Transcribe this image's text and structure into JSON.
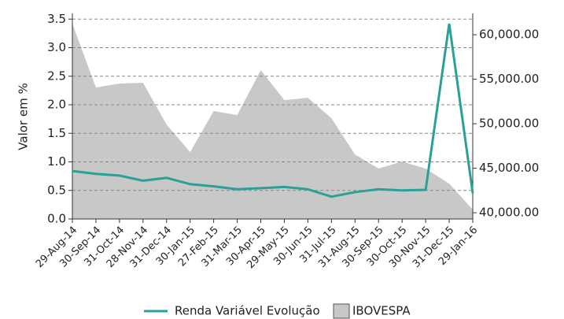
{
  "chart_data": {
    "type": "line",
    "y_label": "Valor em %",
    "categories": [
      "29-Aug-14",
      "30-Sep-14",
      "31-Oct-14",
      "28-Nov-14",
      "31-Dec-14",
      "30-Jan-15",
      "27-Feb-15",
      "31-Mar-15",
      "30-Apr-15",
      "29-May-15",
      "30-Jun-15",
      "31-Jul-15",
      "31-Aug-15",
      "30-Sep-15",
      "30-Oct-15",
      "30-Nov-15",
      "31-Dec-15",
      "29-Jan-16"
    ],
    "series": [
      {
        "name": "Renda Variável Evolução",
        "color": "#2aa198",
        "values": [
          0.84,
          0.79,
          0.76,
          0.67,
          0.72,
          0.61,
          0.57,
          0.52,
          0.54,
          0.56,
          0.52,
          0.39,
          0.47,
          0.52,
          0.5,
          0.51,
          3.42,
          0.45
        ]
      },
      {
        "name": "IBOVESPA",
        "color": "#c8c8c8",
        "axis": "y2",
        "kind": "area",
        "values": [
          61240,
          54070,
          54510,
          54600,
          49910,
          46810,
          51420,
          50970,
          56020,
          52650,
          52920,
          50620,
          46550,
          44960,
          45750,
          44960,
          43270,
          40350
        ]
      }
    ],
    "ylim": [
      0,
      3.6
    ],
    "yticks": [
      {
        "value": 0,
        "label": "0.0"
      },
      0.5,
      {
        "value": 1,
        "label": "1.0"
      },
      1.5,
      {
        "value": 2,
        "label": "2.0"
      },
      2.5,
      {
        "value": 3,
        "label": "3.0"
      },
      3.5
    ],
    "y2lim": [
      39300,
      62400
    ],
    "y2ticks": [
      {
        "value": 40000,
        "label": "40,000.00"
      },
      {
        "value": 45000,
        "label": "45,000.00"
      },
      {
        "value": 50000,
        "label": "50,000.00"
      },
      {
        "value": 55000,
        "label": "55,000.00"
      },
      {
        "value": 60000,
        "label": "60,000.00"
      }
    ],
    "grid": true
  }
}
